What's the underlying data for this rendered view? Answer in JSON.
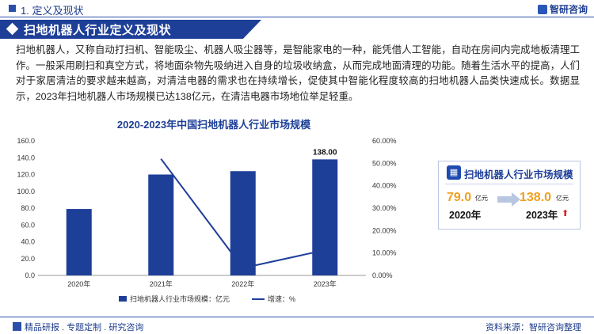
{
  "header": {
    "breadcrumb": "1. 定义及现状",
    "logo_text": "智研咨询"
  },
  "banner": {
    "title": "扫地机器人行业定义及现状"
  },
  "intro": {
    "paragraph": "扫地机器人，又称自动打扫机、智能吸尘、机器人吸尘器等，是智能家电的一种，能凭借人工智能，自动在房间内完成地板清理工作。一般采用刷扫和真空方式，将地面杂物先吸纳进入自身的垃圾收纳盒，从而完成地面清理的功能。随着生活水平的提高，人们对于家居清洁的要求越来越高，对清洁电器的需求也在持续增长，促使其中智能化程度较高的扫地机器人品类快速成长。数据显示，2023年扫地机器人市场规模已达138亿元，在清洁电器市场地位举足轻重。"
  },
  "chart_data": {
    "type": "bar",
    "title": "2020-2023年中国扫地机器人行业市场规模",
    "categories": [
      "2020年",
      "2021年",
      "2022年",
      "2023年"
    ],
    "series": [
      {
        "name": "扫地机器人行业市场规模：亿元",
        "type": "bar",
        "axis": "left",
        "values": [
          79.0,
          120.0,
          124.0,
          138.0
        ],
        "color": "#1e3f98"
      },
      {
        "name": "增速：%",
        "type": "line",
        "axis": "right",
        "values": [
          null,
          52.0,
          3.3,
          11.3
        ],
        "color": "#1e3f98"
      }
    ],
    "data_labels": [
      {
        "category": "2023年",
        "text": "138.00"
      }
    ],
    "ylim_left": [
      0,
      160
    ],
    "ylim_right": [
      0,
      60
    ],
    "yticks_left": [
      "0.0",
      "20.0",
      "40.0",
      "60.0",
      "80.0",
      "100.0",
      "120.0",
      "140.0",
      "160.0"
    ],
    "yticks_right": [
      "0.00%",
      "10.00%",
      "20.00%",
      "30.00%",
      "40.00%",
      "50.00%",
      "60.00%"
    ],
    "legend_position": "bottom",
    "grid": false
  },
  "side_card": {
    "title": "扫地机器人行业市场规模",
    "from_value": "79.0",
    "from_unit": "亿元",
    "from_year": "2020年",
    "to_value": "138.0",
    "to_unit": "亿元",
    "to_year": "2023年",
    "up_arrow": "⬆"
  },
  "footer": {
    "left": "精品研报 . 专题定制 . 研究咨询",
    "right": "资料来源：智研咨询整理"
  }
}
